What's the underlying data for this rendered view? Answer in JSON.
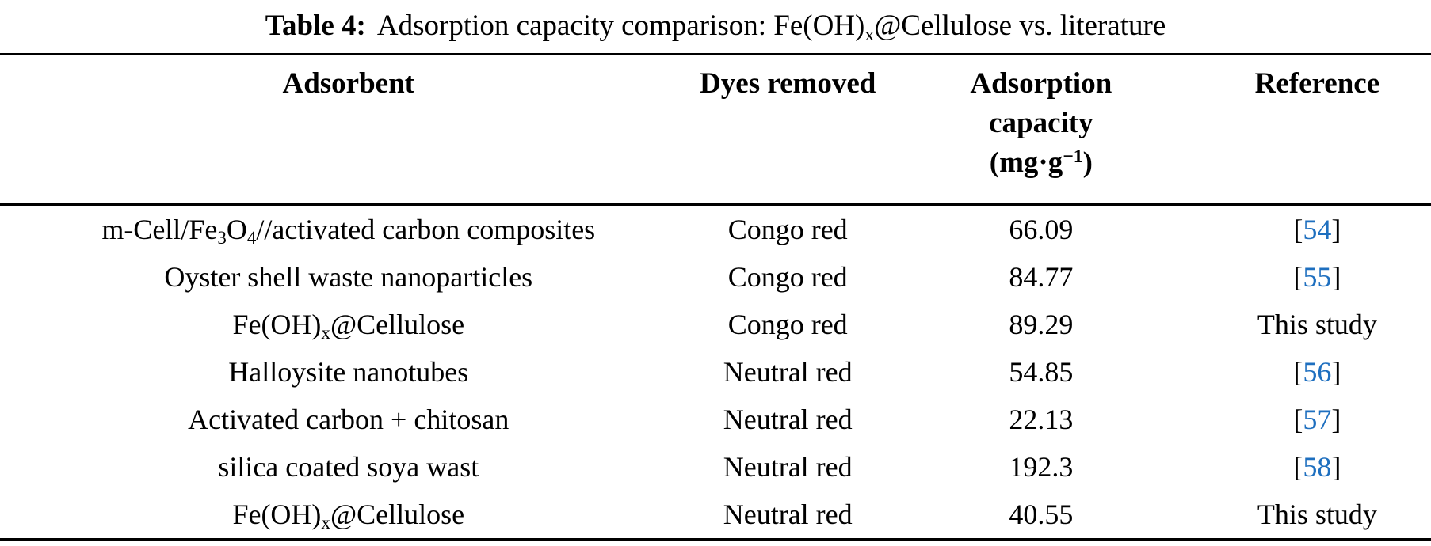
{
  "colors": {
    "text": "#000000",
    "citation_blue": "#1e6fbf",
    "rule": "#000000",
    "background": "#ffffff"
  },
  "caption": {
    "label": "Table 4:",
    "text": [
      {
        "t": "Adsorption capacity comparison: Fe(OH)"
      },
      {
        "t": "x",
        "sub": true
      },
      {
        "t": "@Cellulose vs. literature"
      }
    ]
  },
  "table": {
    "columns": [
      {
        "key": "adsorbent",
        "label": "Adsorbent"
      },
      {
        "key": "dyes_removed",
        "label": "Dyes removed"
      },
      {
        "key": "capacity",
        "label": [
          {
            "t": "Adsorption"
          },
          {
            "br": true
          },
          {
            "t": "capacity"
          },
          {
            "br": true
          },
          {
            "t": "(mg·g"
          },
          {
            "t": "−1",
            "sup": true
          },
          {
            "t": ")"
          }
        ]
      },
      {
        "key": "reference",
        "label": "Reference"
      }
    ],
    "rows": [
      {
        "adsorbent": [
          {
            "t": "m-Cell/Fe"
          },
          {
            "t": "3",
            "sub": true
          },
          {
            "t": "O"
          },
          {
            "t": "4",
            "sub": true
          },
          {
            "t": "//activated carbon composites"
          }
        ],
        "dyes_removed": "Congo red",
        "capacity": "66.09",
        "reference": [
          {
            "t": "["
          },
          {
            "t": "54",
            "cite": true
          },
          {
            "t": "]"
          }
        ]
      },
      {
        "adsorbent": "Oyster shell waste nanoparticles",
        "dyes_removed": "Congo red",
        "capacity": "84.77",
        "reference": [
          {
            "t": "["
          },
          {
            "t": "55",
            "cite": true
          },
          {
            "t": "]"
          }
        ]
      },
      {
        "adsorbent": [
          {
            "t": "Fe(OH)"
          },
          {
            "t": "x",
            "sub": true
          },
          {
            "t": "@Cellulose"
          }
        ],
        "dyes_removed": "Congo red",
        "capacity": "89.29",
        "reference": "This study"
      },
      {
        "adsorbent": "Halloysite nanotubes",
        "dyes_removed": "Neutral red",
        "capacity": "54.85",
        "reference": [
          {
            "t": "["
          },
          {
            "t": "56",
            "cite": true
          },
          {
            "t": "]"
          }
        ]
      },
      {
        "adsorbent": "Activated carbon + chitosan",
        "dyes_removed": "Neutral red",
        "capacity": "22.13",
        "reference": [
          {
            "t": "["
          },
          {
            "t": "57",
            "cite": true
          },
          {
            "t": "]"
          }
        ]
      },
      {
        "adsorbent": "silica coated soya wast",
        "dyes_removed": "Neutral red",
        "capacity": "192.3",
        "reference": [
          {
            "t": "["
          },
          {
            "t": "58",
            "cite": true
          },
          {
            "t": "]"
          }
        ]
      },
      {
        "adsorbent": [
          {
            "t": "Fe(OH)"
          },
          {
            "t": "x",
            "sub": true
          },
          {
            "t": "@Cellulose"
          }
        ],
        "dyes_removed": "Neutral red",
        "capacity": "40.55",
        "reference": "This study"
      }
    ]
  }
}
